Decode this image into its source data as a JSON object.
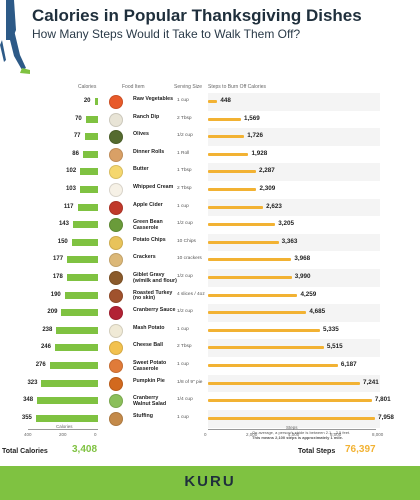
{
  "header": {
    "title": "Calories in Popular Thanksgiving Dishes",
    "subtitle": "How Many Steps Would it Take to Walk Them Off?"
  },
  "columns": {
    "calories": "Calories",
    "food_item": "Food Item",
    "serving_size": "Serving Size",
    "steps": "Steps to Burn Off Calories"
  },
  "chart_data": {
    "type": "bar",
    "categories": [
      "Raw Vegetables",
      "Ranch Dip",
      "Olives",
      "Dinner Rolls",
      "Butter",
      "Whipped Cream",
      "Apple Cider",
      "Green Bean Casserole",
      "Potato Chips",
      "Crackers",
      "Giblet Gravy (w/milk and flour)",
      "Roasted Turkey (no skin)",
      "Cranberry Sauce",
      "Mash Potato",
      "Cheese Ball",
      "Sweet Potato Casserole",
      "Pumpkin Pie",
      "Cranberry Walnut Salad",
      "Stuffing"
    ],
    "serving": [
      "1 cup",
      "2 Tbsp",
      "1/2 cup",
      "1 Roll",
      "1 Tbsp",
      "2 Tbsp",
      "1 cup",
      "1/2 cup",
      "10 Chips",
      "10 crackers",
      "1/2 cup",
      "4 slices / 4oz",
      "1/2 cup",
      "1 cup",
      "2 Tbsp",
      "1 cup",
      "1/8 of 9\" pie",
      "1/4 cup",
      "1 cup"
    ],
    "series": [
      {
        "name": "Calories",
        "values": [
          20,
          70,
          77,
          86,
          102,
          103,
          117,
          143,
          150,
          177,
          178,
          190,
          209,
          238,
          246,
          276,
          323,
          348,
          355
        ]
      },
      {
        "name": "Steps to Burn Off Calories",
        "values": [
          448,
          1569,
          1726,
          1928,
          2287,
          2309,
          2623,
          3205,
          3363,
          3968,
          3990,
          4259,
          4685,
          5335,
          5515,
          6187,
          7241,
          7801,
          7958
        ]
      }
    ],
    "calorie_axis": {
      "ticks": [
        "400",
        "200",
        "0"
      ],
      "label": "Calories",
      "range": [
        0,
        400
      ]
    },
    "steps_axis": {
      "ticks": [
        "0",
        "2,000",
        "4,000",
        "6,000",
        "8,000"
      ],
      "label": "Steps",
      "range": [
        0,
        8000
      ]
    },
    "colors": {
      "calories": "#7fc241",
      "steps": "#f2b233"
    }
  },
  "totals": {
    "calories_label": "Total Calories",
    "calories_value": "3,408",
    "steps_label": "Total Steps",
    "steps_value": "76,397"
  },
  "footnote": {
    "line1": "On average, a person's stride is between 2.1 – 2.5 feet.",
    "line2": "This means 2,100 steps is approximately 1 mile."
  },
  "brand": {
    "name": "KURU"
  },
  "food_icons": [
    "carrot-icon",
    "dip-icon",
    "olives-icon",
    "roll-icon",
    "butter-icon",
    "whipped-cream-icon",
    "apple-icon",
    "casserole-icon",
    "chips-icon",
    "crackers-icon",
    "gravy-icon",
    "turkey-icon",
    "cranberry-sauce-icon",
    "mashed-potato-icon",
    "cheese-ball-icon",
    "sweet-potato-icon",
    "pie-icon",
    "salad-icon",
    "stuffing-icon"
  ]
}
